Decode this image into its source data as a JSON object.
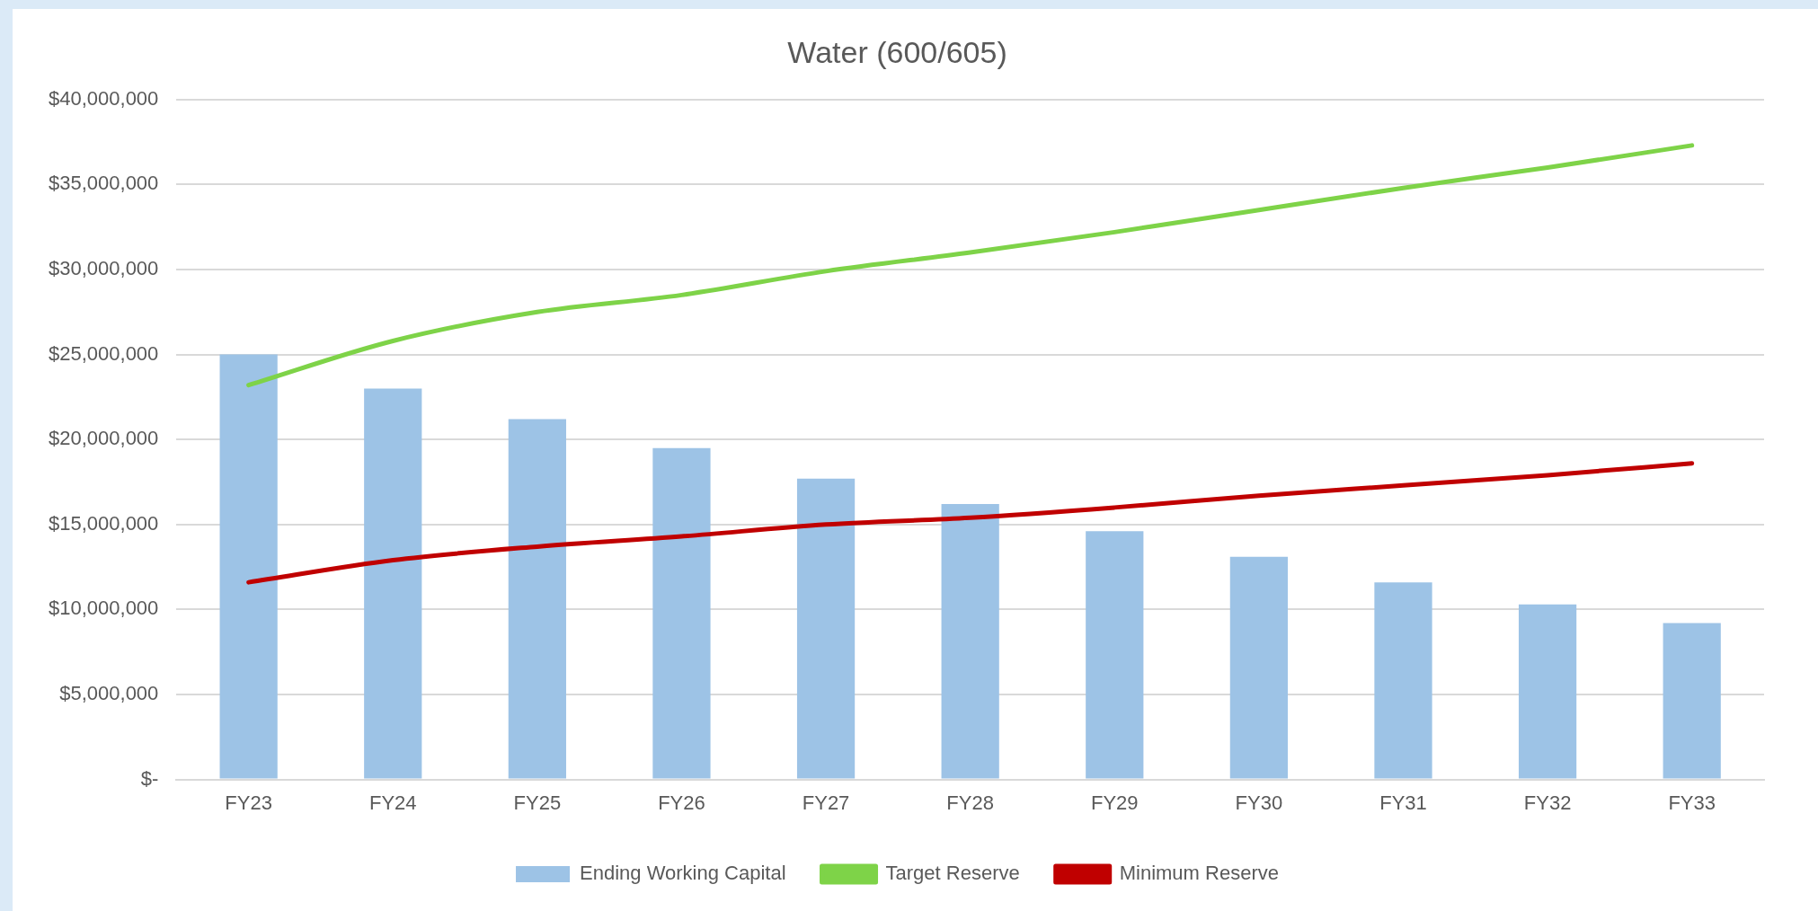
{
  "chart_data": {
    "type": "bar",
    "title": "Water (600/605)",
    "categories": [
      "FY23",
      "FY24",
      "FY25",
      "FY26",
      "FY27",
      "FY28",
      "FY29",
      "FY30",
      "FY31",
      "FY32",
      "FY33"
    ],
    "series": [
      {
        "name": "Ending Working Capital",
        "color": "#9dc3e6",
        "values": [
          25000000,
          23000000,
          21200000,
          19500000,
          17700000,
          16200000,
          14600000,
          13100000,
          11600000,
          10300000,
          9200000
        ]
      },
      {
        "name": "Target Reserve",
        "type": "line",
        "color": "#7ed348",
        "values": [
          23200000,
          25800000,
          27500000,
          28500000,
          29900000,
          31000000,
          32200000,
          33500000,
          34800000,
          36000000,
          37300000
        ]
      },
      {
        "name": "Minimum Reserve",
        "type": "line",
        "color": "#c00000",
        "values": [
          11600000,
          12900000,
          13700000,
          14300000,
          15000000,
          15400000,
          16000000,
          16700000,
          17300000,
          17900000,
          18600000
        ]
      }
    ],
    "ylim": [
      0,
      40000000
    ],
    "yticks": [
      {
        "value": 0,
        "label": "$-"
      },
      {
        "value": 5000000,
        "label": "$5,000,000"
      },
      {
        "value": 10000000,
        "label": "$10,000,000"
      },
      {
        "value": 15000000,
        "label": "$15,000,000"
      },
      {
        "value": 20000000,
        "label": "$20,000,000"
      },
      {
        "value": 25000000,
        "label": "$25,000,000"
      },
      {
        "value": 30000000,
        "label": "$30,000,000"
      },
      {
        "value": 35000000,
        "label": "$35,000,000"
      },
      {
        "value": 40000000,
        "label": "$40,000,000"
      }
    ],
    "grid": "y",
    "legend": "bottom",
    "marker": "none"
  }
}
